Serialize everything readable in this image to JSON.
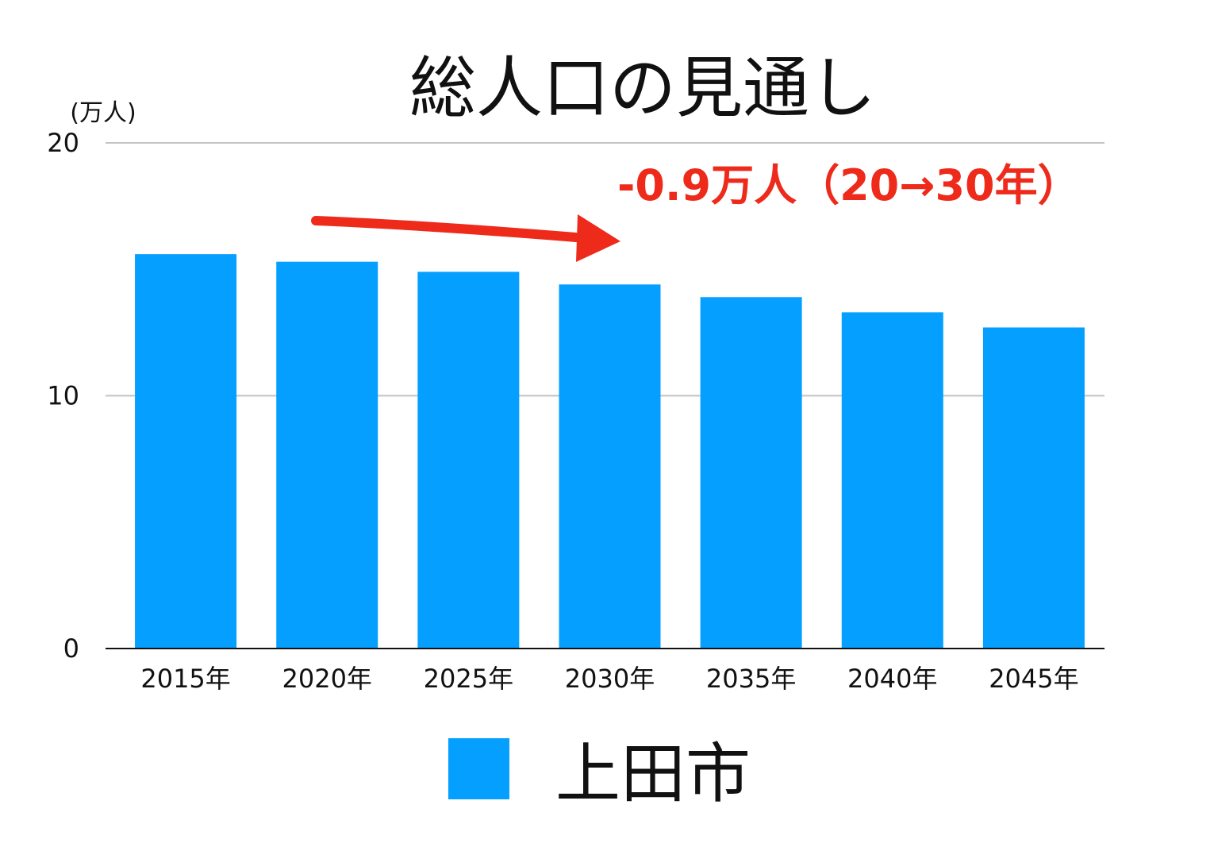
{
  "chart_data": {
    "type": "bar",
    "title": "総人口の見通し",
    "unit_label": "(万人)",
    "categories": [
      "2015年",
      "2020年",
      "2025年",
      "2030年",
      "2035年",
      "2040年",
      "2045年"
    ],
    "series": [
      {
        "name": "上田市",
        "values": [
          15.6,
          15.3,
          14.9,
          14.4,
          13.9,
          13.3,
          12.7
        ]
      }
    ],
    "ylim": [
      0,
      20
    ],
    "yticks": [
      "0",
      "10",
      "20"
    ],
    "grid": true,
    "legend_position": "bottom",
    "bar_color": "#05a0ff",
    "annotation": "-0.9万人（20→30年）",
    "annotation_color": "#ee2a1b"
  }
}
